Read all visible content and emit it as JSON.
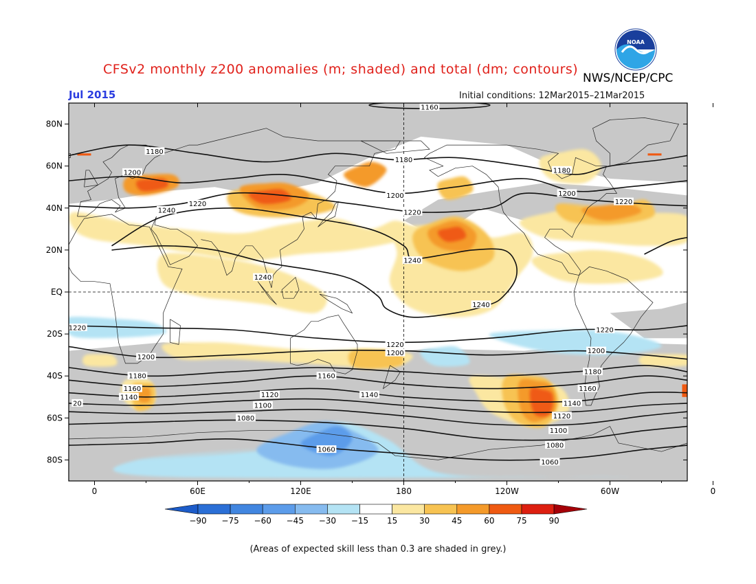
{
  "header": {
    "title": "CFSv2 monthly z200 anomalies (m; shaded) and total (dm; contours)",
    "org": "NWS/NCEP/CPC",
    "logo_text": "NOAA",
    "valid_month": "Jul 2015",
    "initial_conditions": "Initial conditions: 12Mar2015–21Mar2015"
  },
  "map": {
    "lat_labels": [
      "80N",
      "60N",
      "40N",
      "20N",
      "EQ",
      "20S",
      "40S",
      "60S",
      "80S"
    ],
    "lon_labels": [
      "0",
      "60E",
      "120E",
      "180",
      "120W",
      "60W",
      "0"
    ],
    "contour_labels": [
      {
        "text": "1160",
        "lon": 195,
        "lat": 88
      },
      {
        "text": "1180",
        "lon": 35,
        "lat": 67
      },
      {
        "text": "1180",
        "lon": 180,
        "lat": 63
      },
      {
        "text": "1180",
        "lon": 272,
        "lat": 58
      },
      {
        "text": "1200",
        "lon": 22,
        "lat": 57
      },
      {
        "text": "1200",
        "lon": 175,
        "lat": 46
      },
      {
        "text": "1200",
        "lon": 275,
        "lat": 47
      },
      {
        "text": "1220",
        "lon": 60,
        "lat": 42
      },
      {
        "text": "1220",
        "lon": 185,
        "lat": 38
      },
      {
        "text": "1220",
        "lon": 308,
        "lat": 43
      },
      {
        "text": "1240",
        "lon": 42,
        "lat": 39
      },
      {
        "text": "1240",
        "lon": 185,
        "lat": 15
      },
      {
        "text": "1240",
        "lon": 98,
        "lat": 7
      },
      {
        "text": "1240",
        "lon": 225,
        "lat": -6
      },
      {
        "text": "1220",
        "lon": -10,
        "lat": -17
      },
      {
        "text": "1220",
        "lon": 297,
        "lat": -18
      },
      {
        "text": "1220",
        "lon": 175,
        "lat": -25
      },
      {
        "text": "1200",
        "lon": 175,
        "lat": -29
      },
      {
        "text": "1200",
        "lon": 30,
        "lat": -31
      },
      {
        "text": "1200",
        "lon": 292,
        "lat": -28
      },
      {
        "text": "1180",
        "lon": 25,
        "lat": -40
      },
      {
        "text": "1180",
        "lon": 290,
        "lat": -38
      },
      {
        "text": "1160",
        "lon": 135,
        "lat": -40
      },
      {
        "text": "1160",
        "lon": 22,
        "lat": -46
      },
      {
        "text": "1160",
        "lon": 287,
        "lat": -46
      },
      {
        "text": "1140",
        "lon": 20,
        "lat": -50
      },
      {
        "text": "1140",
        "lon": 160,
        "lat": -49
      },
      {
        "text": "1140",
        "lon": 278,
        "lat": -53
      },
      {
        "text": "1120",
        "lon": 102,
        "lat": -49
      },
      {
        "text": "1120",
        "lon": 272,
        "lat": -59
      },
      {
        "text": "1100",
        "lon": 98,
        "lat": -54
      },
      {
        "text": "1100",
        "lon": 270,
        "lat": -66
      },
      {
        "text": "1080",
        "lon": 88,
        "lat": -60
      },
      {
        "text": "1080",
        "lon": 268,
        "lat": -73
      },
      {
        "text": "1060",
        "lon": 135,
        "lat": -75
      },
      {
        "text": "1060",
        "lon": 265,
        "lat": -81
      },
      {
        "text": "20",
        "lon": -10,
        "lat": -53
      }
    ]
  },
  "legend": {
    "labels": [
      "-90",
      "-75",
      "-60",
      "-45",
      "-30",
      "-15",
      "15",
      "30",
      "45",
      "60",
      "75",
      "90"
    ],
    "colors": [
      "#2b6fd6",
      "#4186e0",
      "#5c9cea",
      "#86bbef",
      "#b4e3f4",
      "#ffffff",
      "#fbe7a1",
      "#f7c352",
      "#f49a2a",
      "#ef5a12",
      "#dd1f10",
      "#b4060a"
    ],
    "left_arrow_color": "#1d5cc9",
    "right_arrow_color": "#a50008"
  },
  "footnote": "(Areas of expected skill less than 0.3 are shaded in grey.)",
  "colors": {
    "grey_low_skill": "#c8c8c8",
    "title_red": "#e0201a",
    "date_blue": "#2a3ce0"
  }
}
